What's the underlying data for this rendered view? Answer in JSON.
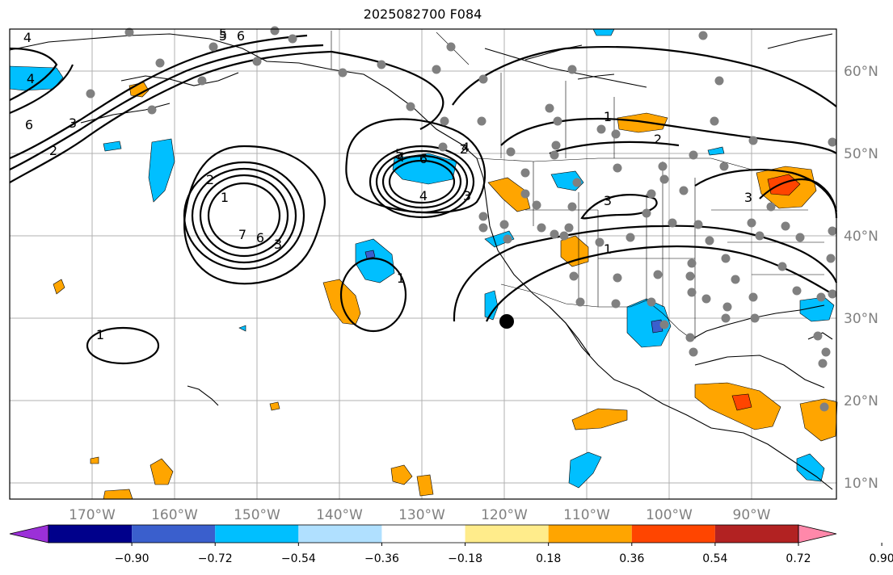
{
  "title": "2025082700 F084",
  "map": {
    "latitude_labels": [
      "10°N",
      "20°N",
      "30°N",
      "40°N",
      "50°N",
      "60°N"
    ],
    "longitude_labels": [
      "170°W",
      "160°W",
      "150°W",
      "140°W",
      "130°W",
      "120°W",
      "110°W",
      "100°W",
      "90°W"
    ],
    "contour_labels": [
      "4",
      "4",
      "6",
      "3",
      "2",
      "5",
      "5",
      "6",
      "4",
      "2",
      "1",
      "2",
      "4",
      "7",
      "6",
      "3",
      "1",
      "1",
      "4",
      "5",
      "6",
      "3",
      "2",
      "1",
      "3",
      "3",
      "1"
    ],
    "contour_color": "#000000",
    "station_marker_color": "#808080",
    "storm_marker_color": "#000000"
  },
  "colorbar": {
    "tick_labels": [
      "−0.90",
      "−0.72",
      "−0.54",
      "−0.36",
      "−0.18",
      "0.18",
      "0.36",
      "0.54",
      "0.72",
      "0.90"
    ],
    "colors": [
      "#9b30d8",
      "#00008b",
      "#3a5fcd",
      "#00bfff",
      "#b0e0ff",
      "#ffffff",
      "#ffec8b",
      "#ffa500",
      "#ff4500",
      "#b22222",
      "#ff88aa"
    ]
  }
}
